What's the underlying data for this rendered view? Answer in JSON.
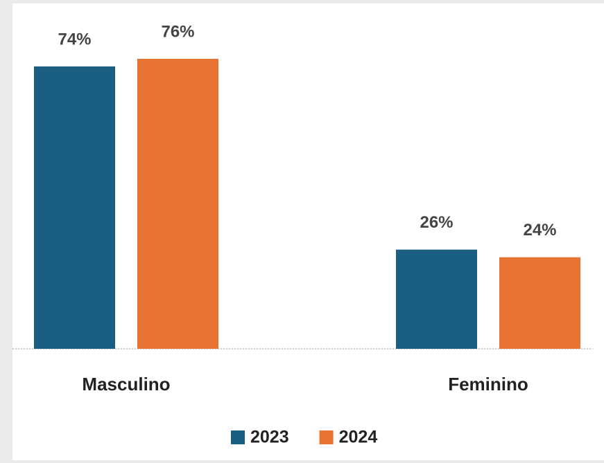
{
  "chart_data": {
    "type": "bar",
    "categories": [
      "Masculino",
      "Feminino"
    ],
    "series": [
      {
        "name": "2023",
        "color": "#1a5e82",
        "values": [
          74,
          26
        ],
        "value_labels": [
          "74%",
          "26%"
        ]
      },
      {
        "name": "2024",
        "color": "#e87434",
        "values": [
          76,
          24
        ],
        "value_labels": [
          "76%",
          "24%"
        ]
      }
    ],
    "legend": "bottom"
  }
}
